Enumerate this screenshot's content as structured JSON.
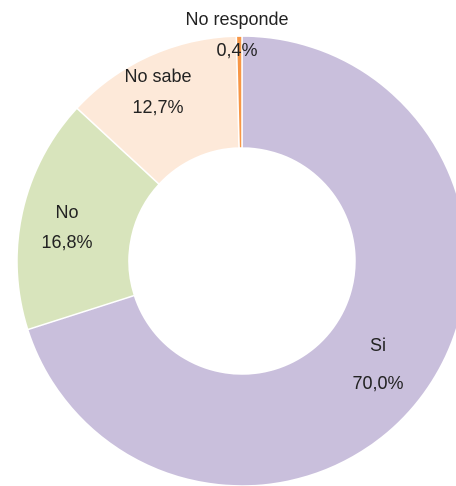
{
  "chart_data": {
    "type": "donut",
    "categories": [
      "Si",
      "No",
      "No sabe",
      "No responde"
    ],
    "values": [
      70.0,
      16.8,
      12.7,
      0.4
    ],
    "value_labels": [
      "70,0%",
      "16,8%",
      "12,7%",
      "0,4%"
    ],
    "colors": [
      "#c9bfdc",
      "#d8e4bc",
      "#fde9d9",
      "#f79646"
    ]
  }
}
